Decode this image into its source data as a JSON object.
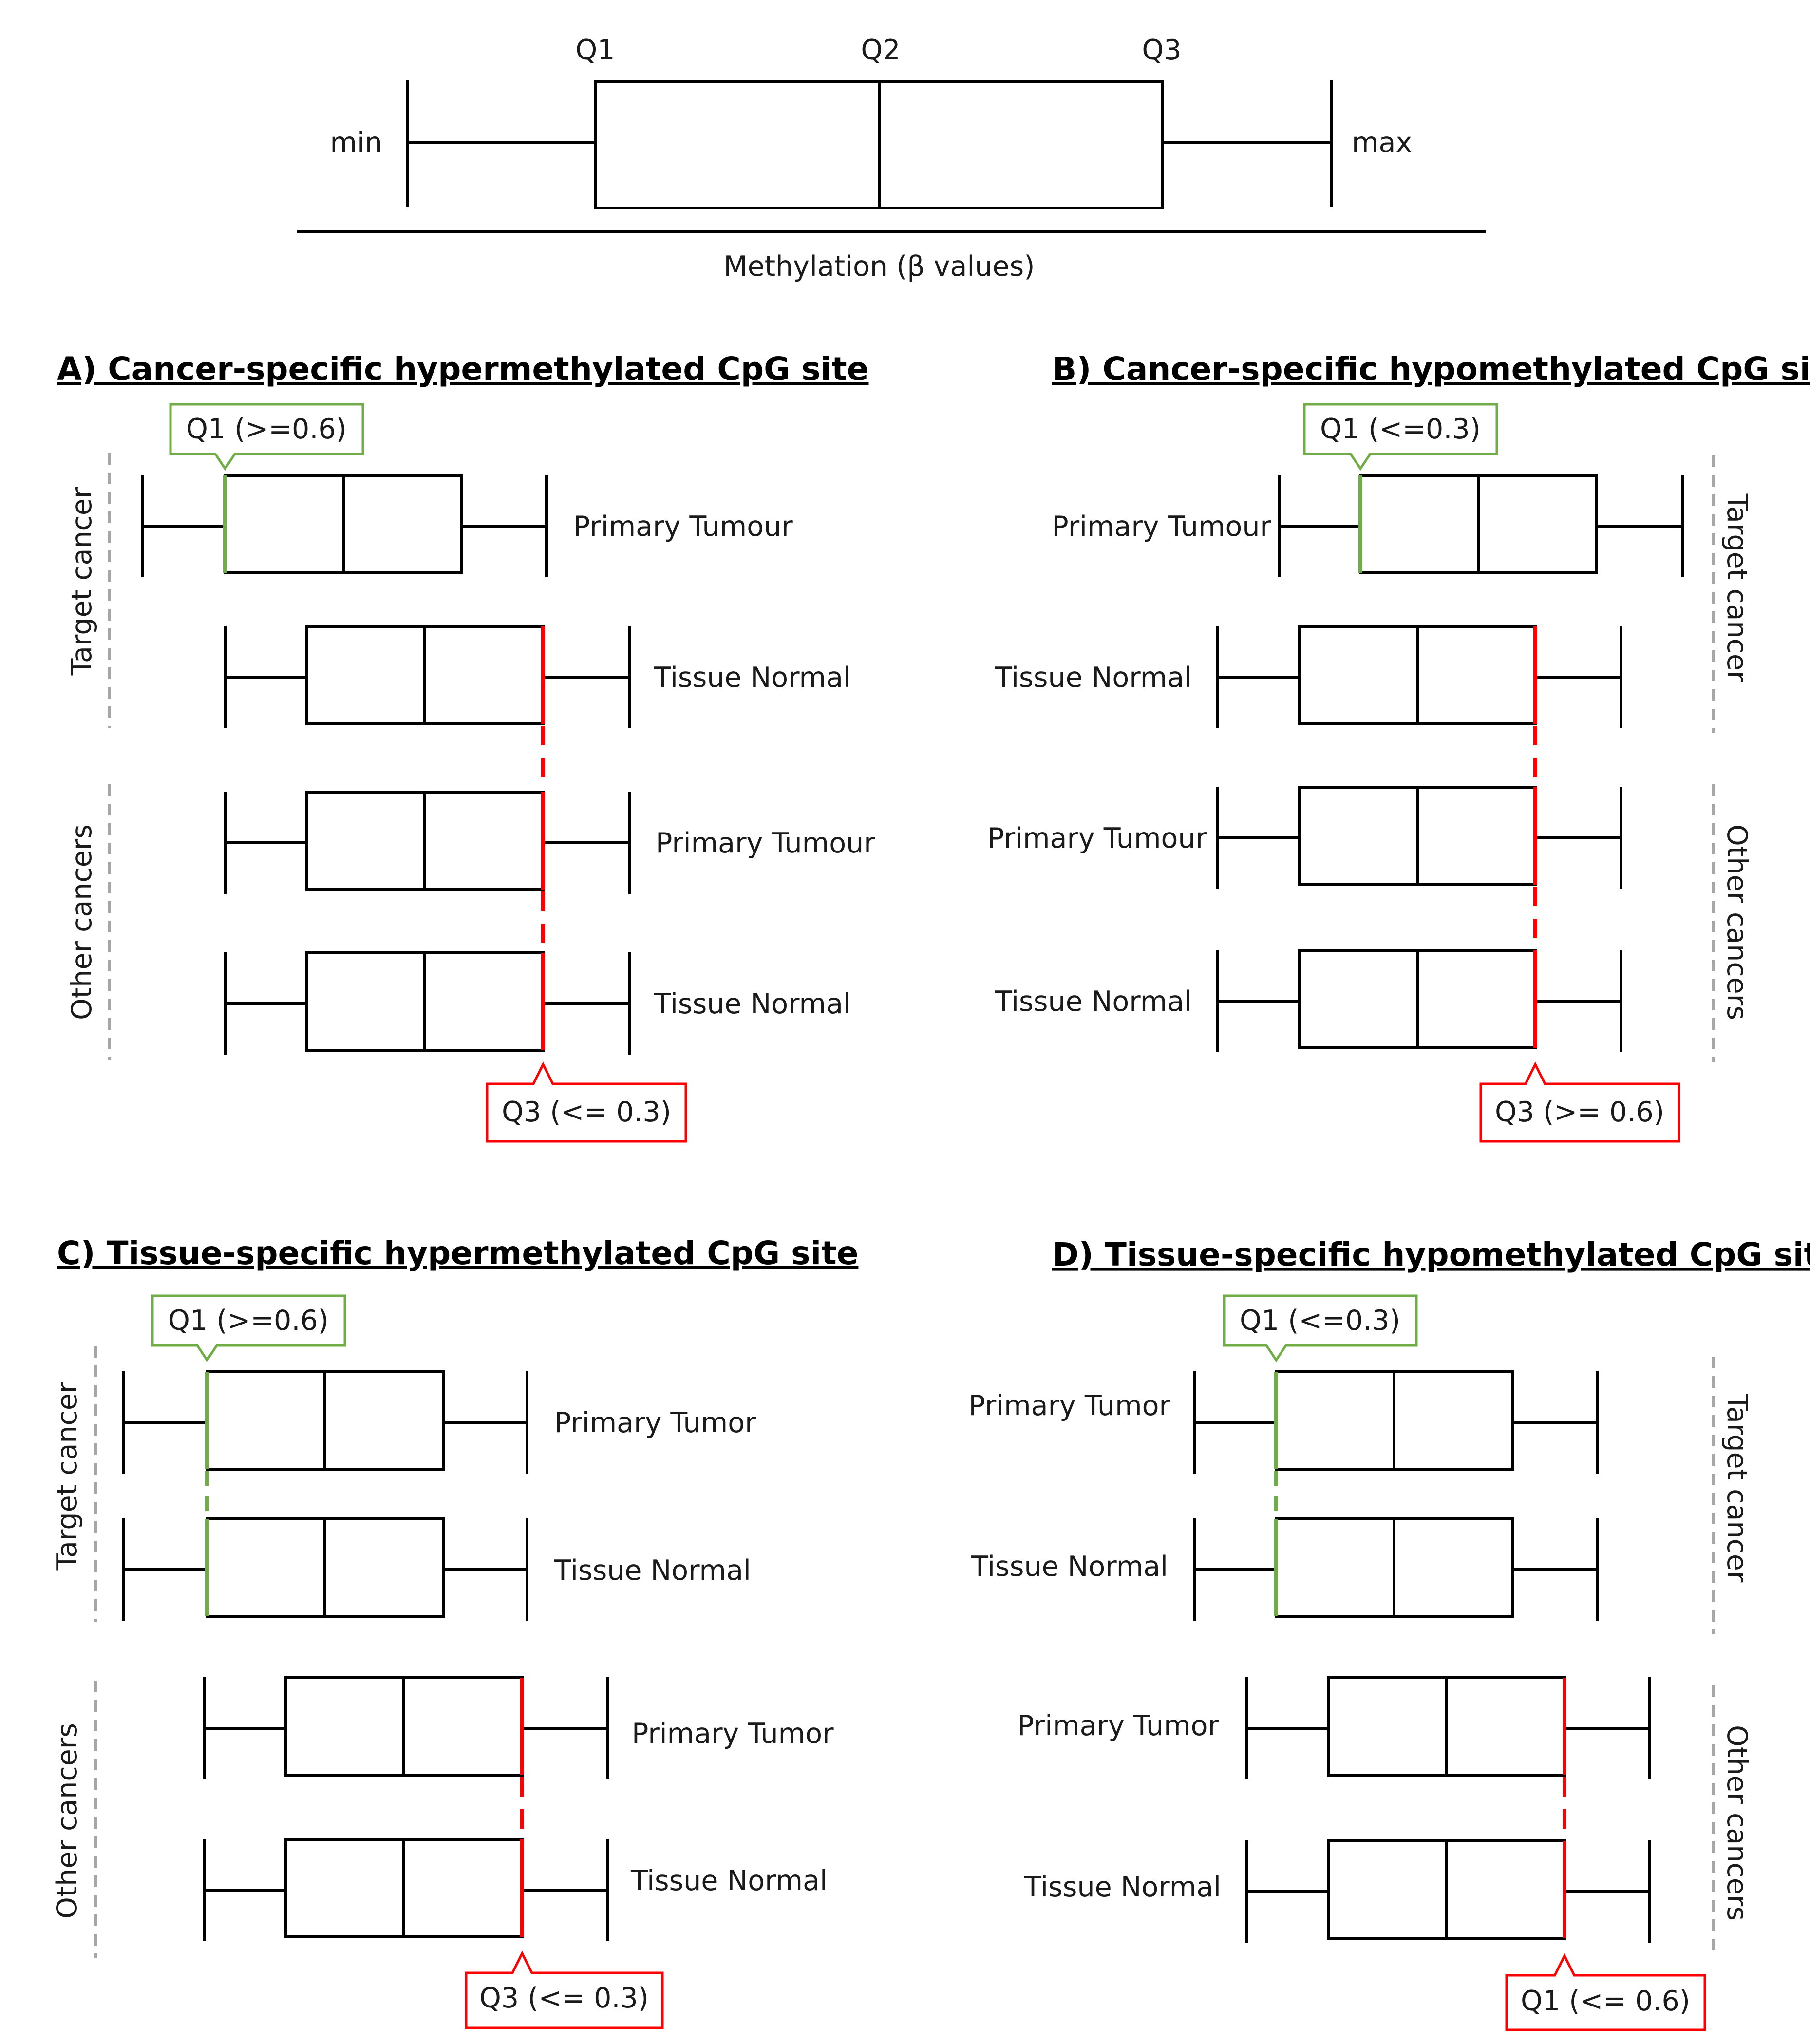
{
  "colors": {
    "green": "#70ad47",
    "red": "#ff0000",
    "ink": "#000000",
    "guide": "#a6a6a6"
  },
  "legend": {
    "q1": "Q1",
    "q2": "Q2",
    "q3": "Q3",
    "min": "min",
    "max": "max",
    "axis_label": "Methylation (β values)"
  },
  "panels": {
    "a": {
      "title": "A) Cancer-specific hypermethylated CpG site",
      "target_label": "Target cancer",
      "other_label": "Other cancers",
      "rows": [
        "Primary Tumour",
        "Tissue Normal",
        "Primary Tumour",
        "Tissue Normal"
      ],
      "green_callout": "Q1 (>=0.6)",
      "red_callout": "Q3 (<= 0.3)"
    },
    "b": {
      "title": "B) Cancer-specific hypomethylated CpG site",
      "target_label": "Target cancer",
      "other_label": "Other cancers",
      "rows": [
        "Primary Tumour",
        "Tissue Normal",
        "Primary Tumour",
        "Tissue Normal"
      ],
      "green_callout": "Q1 (<=0.3)",
      "red_callout": "Q3 (>= 0.6)"
    },
    "c": {
      "title": "C) Tissue-specific hypermethylated CpG site",
      "target_label": "Target cancer",
      "other_label": "Other cancers",
      "rows": [
        "Primary Tumor",
        "Tissue Normal",
        "Primary Tumor",
        "Tissue Normal"
      ],
      "green_callout": "Q1 (>=0.6)",
      "red_callout": "Q3 (<= 0.3)"
    },
    "d": {
      "title": "D) Tissue-specific hypomethylated CpG site",
      "target_label": "Target cancer",
      "other_label": "Other cancers",
      "rows": [
        "Primary Tumor",
        "Tissue Normal",
        "Primary Tumor",
        "Tissue Normal"
      ],
      "green_callout": "Q1 (<=0.3)",
      "red_callout": "Q1 (<= 0.6)"
    }
  }
}
